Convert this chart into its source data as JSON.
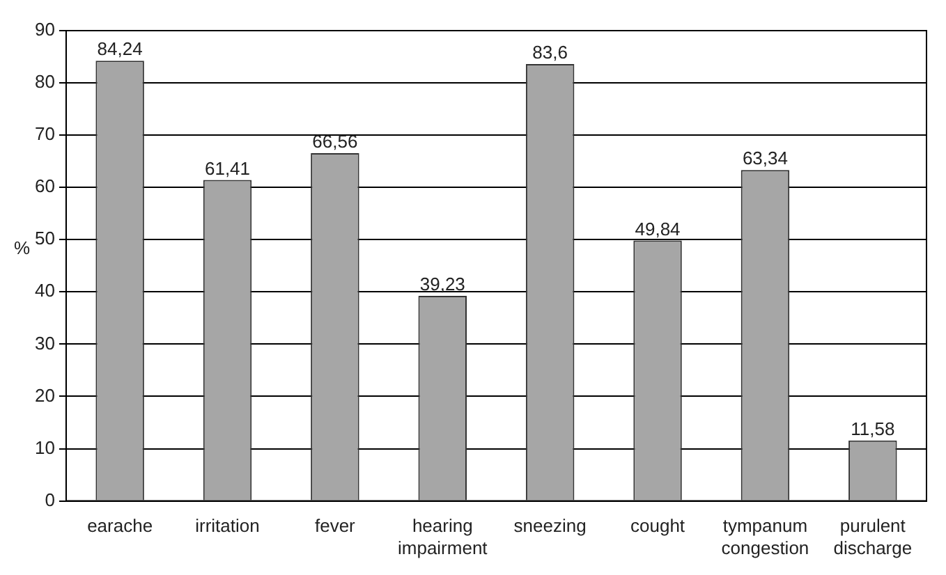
{
  "chart_data": {
    "type": "bar",
    "ylabel": "%",
    "categories": [
      "earache",
      "irritation",
      "fever",
      "hearing impairment",
      "sneezing",
      "cought",
      "tympanum congestion",
      "purulent discharge"
    ],
    "values": [
      84.24,
      61.41,
      66.56,
      39.23,
      83.6,
      49.84,
      63.34,
      11.58
    ],
    "value_labels": [
      "84,24",
      "61,41",
      "66,56",
      "39,23",
      "83,6",
      "49,84",
      "63,34",
      "11,58"
    ],
    "color": "#a6a6a6",
    "ylim": [
      0,
      90
    ],
    "yticks": [
      0,
      10,
      20,
      30,
      40,
      50,
      60,
      70,
      80,
      90
    ],
    "grid": "y"
  }
}
